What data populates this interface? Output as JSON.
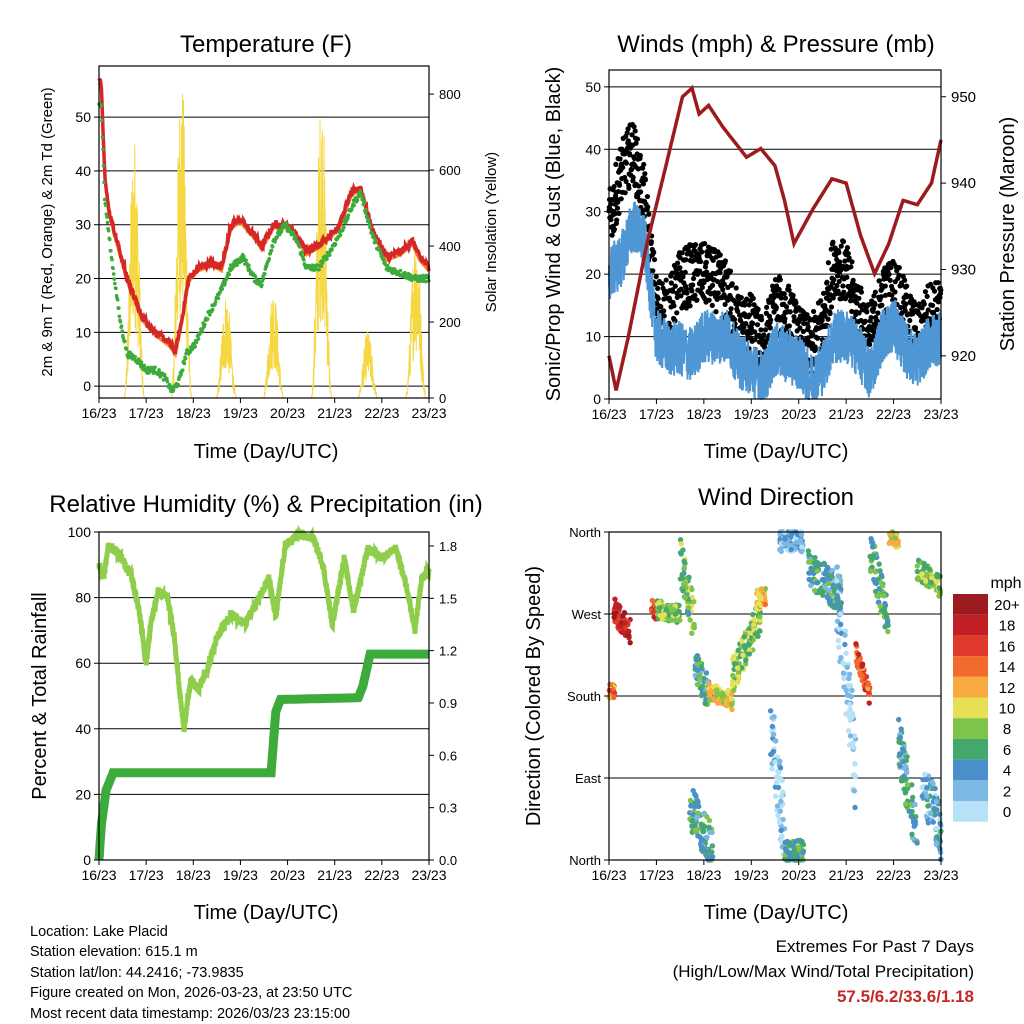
{
  "chart_data": [
    {
      "type": "line",
      "title": "Temperature (F)",
      "xlabel": "Time (Day/UTC)",
      "ylabel": "2m & 9m T (Red, Orange) & 2m Td (Green)",
      "ylabel_right": "Solar Insolation (Yellow)",
      "x_ticks": [
        "16/23",
        "17/23",
        "18/23",
        "19/23",
        "20/23",
        "21/23",
        "22/23",
        "23/23"
      ],
      "xlim": [
        0,
        7
      ],
      "ylim": [
        -2.2,
        59.5
      ],
      "y_ticks": [
        0,
        10,
        20,
        30,
        40,
        50
      ],
      "ylim_right": [
        0,
        874
      ],
      "y_ticks_right": [
        0,
        200,
        400,
        600,
        800
      ],
      "grid": true,
      "series": [
        {
          "name": "2m/9m T",
          "color": "#d62728",
          "points": [
            [
              0,
              57
            ],
            [
              0.05,
              56
            ],
            [
              0.12,
              40
            ],
            [
              0.2,
              33
            ],
            [
              0.35,
              28
            ],
            [
              0.6,
              20
            ],
            [
              0.9,
              13
            ],
            [
              1.2,
              10
            ],
            [
              1.5,
              8
            ],
            [
              1.62,
              6.5
            ],
            [
              1.75,
              12
            ],
            [
              1.9,
              20
            ],
            [
              2.1,
              22
            ],
            [
              2.4,
              23
            ],
            [
              2.6,
              22
            ],
            [
              2.8,
              30
            ],
            [
              3.0,
              31
            ],
            [
              3.3,
              28
            ],
            [
              3.45,
              26
            ],
            [
              3.7,
              30
            ],
            [
              4.0,
              30
            ],
            [
              4.2,
              28
            ],
            [
              4.4,
              25
            ],
            [
              4.6,
              26
            ],
            [
              4.9,
              28
            ],
            [
              5.1,
              30
            ],
            [
              5.35,
              36
            ],
            [
              5.55,
              37
            ],
            [
              5.8,
              29
            ],
            [
              6.1,
              24
            ],
            [
              6.4,
              25
            ],
            [
              6.65,
              27
            ],
            [
              6.8,
              24
            ],
            [
              7.0,
              22
            ]
          ]
        },
        {
          "name": "2m Td",
          "color": "#3cab3c",
          "points": [
            [
              0,
              53
            ],
            [
              0.05,
              52
            ],
            [
              0.12,
              35
            ],
            [
              0.25,
              25
            ],
            [
              0.45,
              12
            ],
            [
              0.6,
              6
            ],
            [
              0.8,
              5
            ],
            [
              1.0,
              3
            ],
            [
              1.2,
              3
            ],
            [
              1.4,
              1.5
            ],
            [
              1.55,
              -1
            ],
            [
              1.7,
              1
            ],
            [
              1.85,
              6
            ],
            [
              2.05,
              8
            ],
            [
              2.3,
              13
            ],
            [
              2.55,
              17
            ],
            [
              2.8,
              22
            ],
            [
              3.05,
              24
            ],
            [
              3.3,
              20
            ],
            [
              3.45,
              19
            ],
            [
              3.7,
              27
            ],
            [
              3.95,
              30
            ],
            [
              4.2,
              27
            ],
            [
              4.4,
              22
            ],
            [
              4.65,
              22
            ],
            [
              4.9,
              25
            ],
            [
              5.15,
              29
            ],
            [
              5.4,
              34
            ],
            [
              5.55,
              36
            ],
            [
              5.8,
              28
            ],
            [
              6.1,
              22
            ],
            [
              6.4,
              21
            ],
            [
              6.7,
              20
            ],
            [
              7.0,
              20
            ]
          ]
        },
        {
          "name": "Solar Insolation",
          "color": "#f5d742",
          "axis": "right",
          "peaks": [
            [
              0.75,
              700
            ],
            [
              1.75,
              870
            ],
            [
              2.7,
              280
            ],
            [
              3.7,
              300
            ],
            [
              4.72,
              810
            ],
            [
              5.7,
              180
            ],
            [
              6.72,
              460
            ]
          ]
        }
      ]
    },
    {
      "type": "scatter",
      "title": "Winds (mph) & Pressure (mb)",
      "xlabel": "Time (Day/UTC)",
      "ylabel": "Sonic/Prop Wind & Gust (Blue, Black)",
      "ylabel_right": "Station Pressure (Maroon)",
      "x_ticks": [
        "16/23",
        "17/23",
        "18/23",
        "19/23",
        "20/23",
        "21/23",
        "22/23",
        "23/23"
      ],
      "xlim": [
        0,
        7
      ],
      "ylim": [
        0,
        52.7
      ],
      "y_ticks": [
        0,
        10,
        20,
        30,
        40,
        50
      ],
      "ylim_right": [
        915.0,
        953.1
      ],
      "y_ticks_right": [
        920,
        930,
        940,
        950
      ],
      "grid": true,
      "wind_step_days": 0.25,
      "wind": [
        20,
        22,
        28,
        25,
        10,
        8,
        8,
        7,
        10,
        10,
        10,
        6,
        5,
        3,
        8,
        7,
        6,
        3,
        5,
        10,
        10,
        8,
        4,
        10,
        12,
        8,
        6,
        9,
        10
      ],
      "gust": [
        28,
        36,
        40,
        32,
        15,
        14,
        19,
        20,
        20,
        19,
        17,
        12,
        12,
        8,
        15,
        14,
        10,
        8,
        12,
        22,
        20,
        14,
        10,
        16,
        18,
        14,
        10,
        14,
        14
      ],
      "pressure": [
        [
          0,
          920
        ],
        [
          0.15,
          916
        ],
        [
          0.4,
          922
        ],
        [
          0.8,
          933
        ],
        [
          1.2,
          942
        ],
        [
          1.55,
          950
        ],
        [
          1.75,
          951
        ],
        [
          1.9,
          948
        ],
        [
          2.1,
          949
        ],
        [
          2.4,
          946.5
        ],
        [
          2.9,
          943
        ],
        [
          3.2,
          944
        ],
        [
          3.5,
          942
        ],
        [
          3.7,
          938
        ],
        [
          3.9,
          933
        ],
        [
          4.3,
          937
        ],
        [
          4.7,
          940.5
        ],
        [
          5.0,
          940
        ],
        [
          5.3,
          934
        ],
        [
          5.6,
          929.5
        ],
        [
          5.9,
          933
        ],
        [
          6.2,
          938
        ],
        [
          6.5,
          937.5
        ],
        [
          6.8,
          940
        ],
        [
          7.0,
          945
        ]
      ]
    },
    {
      "type": "line",
      "title": "Relative Humidity (%) & Precipitation (in)",
      "xlabel": "Time (Day/UTC)",
      "ylabel": "Percent & Total Rainfall",
      "x_ticks": [
        "16/23",
        "17/23",
        "18/23",
        "19/23",
        "20/23",
        "21/23",
        "22/23",
        "23/23"
      ],
      "xlim": [
        0,
        7
      ],
      "ylim": [
        0,
        100
      ],
      "y_ticks": [
        0,
        20,
        40,
        60,
        80,
        100
      ],
      "ylim_right": [
        0,
        1.88
      ],
      "y_ticks_right": [
        "0.0",
        "0.3",
        "0.6",
        "0.9",
        "1.2",
        "1.5",
        "1.8"
      ],
      "grid": true,
      "series": [
        {
          "name": "Relative Humidity",
          "color": "#8fce4a",
          "points": [
            [
              0,
              90
            ],
            [
              0.1,
              86
            ],
            [
              0.2,
              96
            ],
            [
              0.45,
              93
            ],
            [
              0.7,
              86
            ],
            [
              0.85,
              76
            ],
            [
              1.0,
              60
            ],
            [
              1.1,
              72
            ],
            [
              1.25,
              82
            ],
            [
              1.45,
              80
            ],
            [
              1.6,
              68
            ],
            [
              1.72,
              50
            ],
            [
              1.8,
              40
            ],
            [
              1.95,
              55
            ],
            [
              2.1,
              52
            ],
            [
              2.3,
              58
            ],
            [
              2.5,
              68
            ],
            [
              2.8,
              75
            ],
            [
              3.1,
              72
            ],
            [
              3.4,
              80
            ],
            [
              3.6,
              86
            ],
            [
              3.75,
              74
            ],
            [
              3.95,
              96
            ],
            [
              4.25,
              99
            ],
            [
              4.55,
              98
            ],
            [
              4.75,
              90
            ],
            [
              4.95,
              72
            ],
            [
              5.2,
              92
            ],
            [
              5.4,
              76
            ],
            [
              5.7,
              95
            ],
            [
              6.0,
              92
            ],
            [
              6.3,
              95
            ],
            [
              6.55,
              82
            ],
            [
              6.7,
              70
            ],
            [
              6.85,
              86
            ],
            [
              7.0,
              88
            ]
          ]
        },
        {
          "name": "Total Precipitation",
          "color": "#3cab3c",
          "axis": "right",
          "points": [
            [
              0,
              0
            ],
            [
              0.05,
              0.2
            ],
            [
              0.15,
              0.4
            ],
            [
              0.3,
              0.5
            ],
            [
              3.65,
              0.5
            ],
            [
              3.75,
              0.85
            ],
            [
              3.85,
              0.92
            ],
            [
              5.5,
              0.93
            ],
            [
              5.6,
              1.0
            ],
            [
              5.75,
              1.18
            ],
            [
              7.0,
              1.18
            ]
          ]
        }
      ]
    },
    {
      "type": "scatter",
      "title": "Wind Direction",
      "xlabel": "Time (Day/UTC)",
      "ylabel": "Direction (Colored By Speed)",
      "x_ticks": [
        "16/23",
        "17/23",
        "18/23",
        "19/23",
        "20/23",
        "21/23",
        "22/23",
        "23/23"
      ],
      "xlim": [
        0,
        7
      ],
      "ylim": [
        0,
        360
      ],
      "y_ticks": [
        {
          "v": 0,
          "label": "North"
        },
        {
          "v": 90,
          "label": "East"
        },
        {
          "v": 180,
          "label": "South"
        },
        {
          "v": 270,
          "label": "West"
        },
        {
          "v": 360,
          "label": "North"
        }
      ],
      "grid": true,
      "legend": {
        "title": "mph",
        "placement": "right",
        "bins": [
          {
            "label": "20+",
            "color": "#9b1b1e"
          },
          {
            "label": "18",
            "color": "#c01f26"
          },
          {
            "label": "16",
            "color": "#e03a2c"
          },
          {
            "label": "14",
            "color": "#f26a2c"
          },
          {
            "label": "12",
            "color": "#f9a942"
          },
          {
            "label": "10",
            "color": "#e7e057"
          },
          {
            "label": "8",
            "color": "#7ec34a"
          },
          {
            "label": "6",
            "color": "#44a76d"
          },
          {
            "label": "4",
            "color": "#4a8fc9"
          },
          {
            "label": "2",
            "color": "#7db8e5"
          },
          {
            "label": "0",
            "color": "#b6e1f7"
          }
        ]
      },
      "clusters": [
        [
          0,
          0.12,
          185,
          185,
          8,
          14
        ],
        [
          0.1,
          0.45,
          275,
          250,
          14,
          19
        ],
        [
          0.9,
          1.0,
          280,
          270,
          8,
          17
        ],
        [
          1.0,
          1.5,
          275,
          270,
          10,
          9
        ],
        [
          1.5,
          1.8,
          330,
          260,
          25,
          8
        ],
        [
          1.8,
          2.1,
          220,
          180,
          20,
          6
        ],
        [
          2.1,
          2.6,
          185,
          175,
          10,
          11
        ],
        [
          2.6,
          3.2,
          200,
          270,
          20,
          9
        ],
        [
          3.1,
          3.3,
          285,
          290,
          10,
          12
        ],
        [
          3.4,
          3.7,
          150,
          30,
          40,
          2
        ],
        [
          3.7,
          4.1,
          10,
          10,
          12,
          7
        ],
        [
          3.6,
          4.1,
          350,
          350,
          12,
          3
        ],
        [
          4.2,
          4.9,
          320,
          290,
          20,
          6
        ],
        [
          4.8,
          5.2,
          300,
          100,
          50,
          2
        ],
        [
          5.2,
          5.5,
          230,
          180,
          10,
          16
        ],
        [
          5.5,
          5.9,
          340,
          260,
          25,
          7
        ],
        [
          5.9,
          6.1,
          355,
          350,
          8,
          11
        ],
        [
          6.1,
          6.5,
          130,
          30,
          30,
          6
        ],
        [
          6.5,
          7.0,
          320,
          300,
          12,
          9
        ],
        [
          6.6,
          7.0,
          90,
          30,
          30,
          4
        ],
        [
          1.7,
          2.2,
          60,
          10,
          25,
          6
        ]
      ]
    }
  ],
  "info": {
    "location": "Location: Lake Placid",
    "elevation": "Station elevation: 615.1 m",
    "latlon": "Station lat/lon: 44.2416; -73.9835",
    "created": "Figure created on Mon, 2026-03-23, at 23:50 UTC",
    "recent": "Most recent data timestamp: 2026/03/23 23:15:00"
  },
  "extremes": {
    "title": "Extremes For Past 7 Days",
    "subtitle": "(High/Low/Max Wind/Total Precipitation)",
    "values": "57.5/6.2/33.6/1.18"
  }
}
